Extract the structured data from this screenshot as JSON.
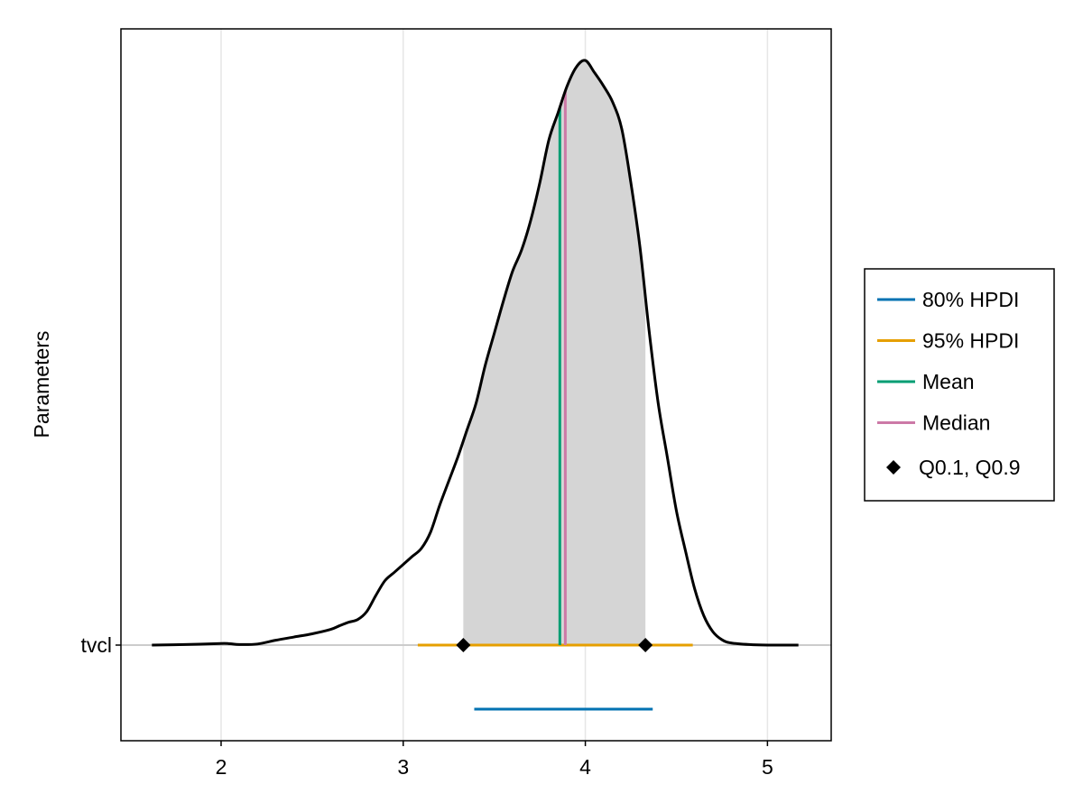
{
  "chart_data": {
    "type": "density",
    "ylabel": "Parameters",
    "xlim": [
      1.45,
      5.35
    ],
    "x_ticks": [
      "2",
      "3",
      "4",
      "5"
    ],
    "x_tick_values": [
      2,
      3,
      4,
      5
    ],
    "y_categories": [
      "tvcl"
    ],
    "grid": true,
    "legend_placement": "right",
    "density": {
      "parameter": "tvcl",
      "x": [
        1.62,
        1.8,
        2.0,
        2.05,
        2.1,
        2.2,
        2.3,
        2.4,
        2.5,
        2.6,
        2.65,
        2.7,
        2.75,
        2.8,
        2.85,
        2.9,
        2.95,
        3.0,
        3.05,
        3.1,
        3.15,
        3.2,
        3.25,
        3.3,
        3.35,
        3.4,
        3.45,
        3.5,
        3.55,
        3.6,
        3.65,
        3.7,
        3.75,
        3.8,
        3.85,
        3.9,
        3.95,
        4.0,
        4.05,
        4.1,
        4.15,
        4.2,
        4.25,
        4.3,
        4.35,
        4.4,
        4.45,
        4.5,
        4.55,
        4.6,
        4.65,
        4.7,
        4.75,
        4.8,
        4.9,
        5.0,
        5.17
      ],
      "y": [
        0.0,
        0.002,
        0.006,
        0.005,
        0.002,
        0.004,
        0.018,
        0.03,
        0.042,
        0.058,
        0.072,
        0.085,
        0.095,
        0.125,
        0.185,
        0.24,
        0.27,
        0.3,
        0.33,
        0.36,
        0.42,
        0.52,
        0.61,
        0.7,
        0.8,
        0.9,
        1.04,
        1.16,
        1.28,
        1.39,
        1.47,
        1.58,
        1.72,
        1.88,
        1.98,
        2.08,
        2.15,
        2.175,
        2.13,
        2.08,
        2.02,
        1.92,
        1.72,
        1.48,
        1.17,
        0.9,
        0.7,
        0.5,
        0.35,
        0.21,
        0.11,
        0.05,
        0.02,
        0.008,
        0.002,
        0.0,
        0.0
      ]
    },
    "hpdi_80": {
      "low": 3.39,
      "high": 4.37
    },
    "hpdi_95": {
      "low": 3.08,
      "high": 4.59
    },
    "mean": 3.86,
    "median": 3.89,
    "q10": 3.33,
    "q90": 4.33,
    "colors": {
      "hpdi_80": "#0072B2",
      "hpdi_95": "#E69F00",
      "mean": "#009E73",
      "median": "#CC79A7",
      "quantiles": "#000000",
      "shade": "#d5d5d5",
      "density": "#000000",
      "grid": "#e6e6e6"
    },
    "legend": [
      {
        "label": "80% HPDI",
        "kind": "line",
        "color": "#0072B2"
      },
      {
        "label": "95% HPDI",
        "kind": "line",
        "color": "#E69F00"
      },
      {
        "label": "Mean",
        "kind": "line",
        "color": "#009E73"
      },
      {
        "label": "Median",
        "kind": "line",
        "color": "#CC79A7"
      },
      {
        "label": "Q0.1, Q0.9",
        "kind": "diamond",
        "color": "#000000"
      }
    ]
  }
}
